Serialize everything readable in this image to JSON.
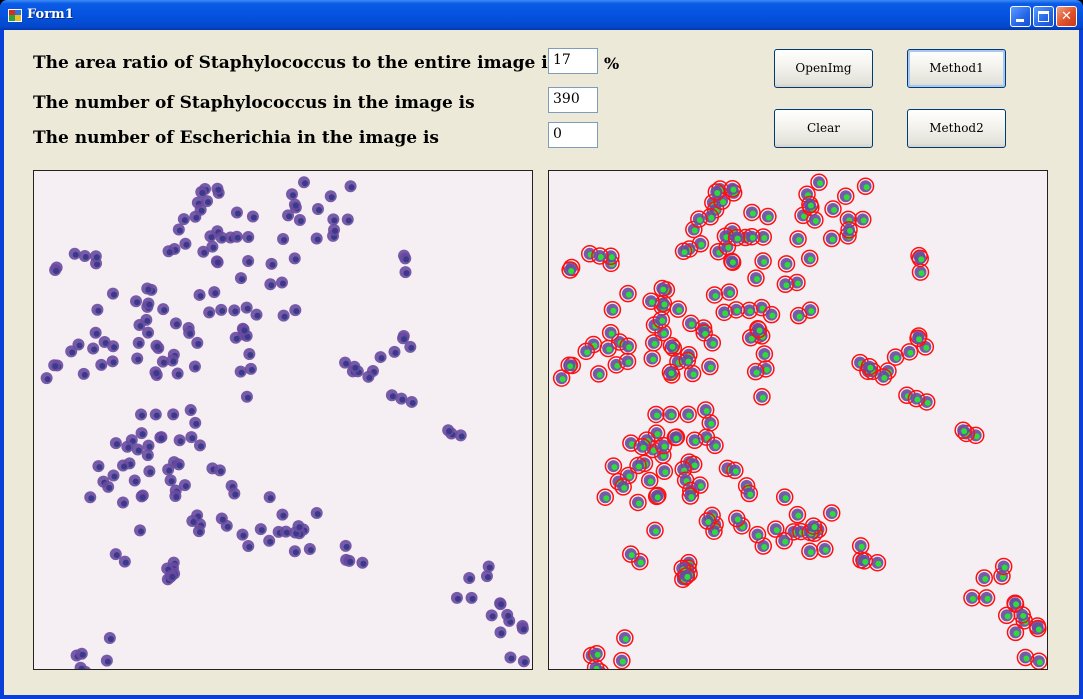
{
  "window": {
    "title": "Form1"
  },
  "labels": {
    "ratio": "The area ratio of Staphylococcus to the entire image is",
    "staph_count": "The number of Staphylococcus in the image is",
    "esch_count": "The number of Escherichia in the image is",
    "percent": "%"
  },
  "fields": {
    "ratio": "17",
    "staph_count": "390",
    "esch_count": "0"
  },
  "buttons": {
    "open": "OpenImg",
    "method1": "Method1",
    "clear": "Clear",
    "method2": "Method2"
  },
  "images": {
    "left": "original-micrograph",
    "right": "segmented-micrograph"
  },
  "colors": {
    "cell": "#6a4aa0",
    "cell_dark": "#3a3a8a",
    "outline": "#ff1010",
    "marker": "#2bdc3a"
  }
}
